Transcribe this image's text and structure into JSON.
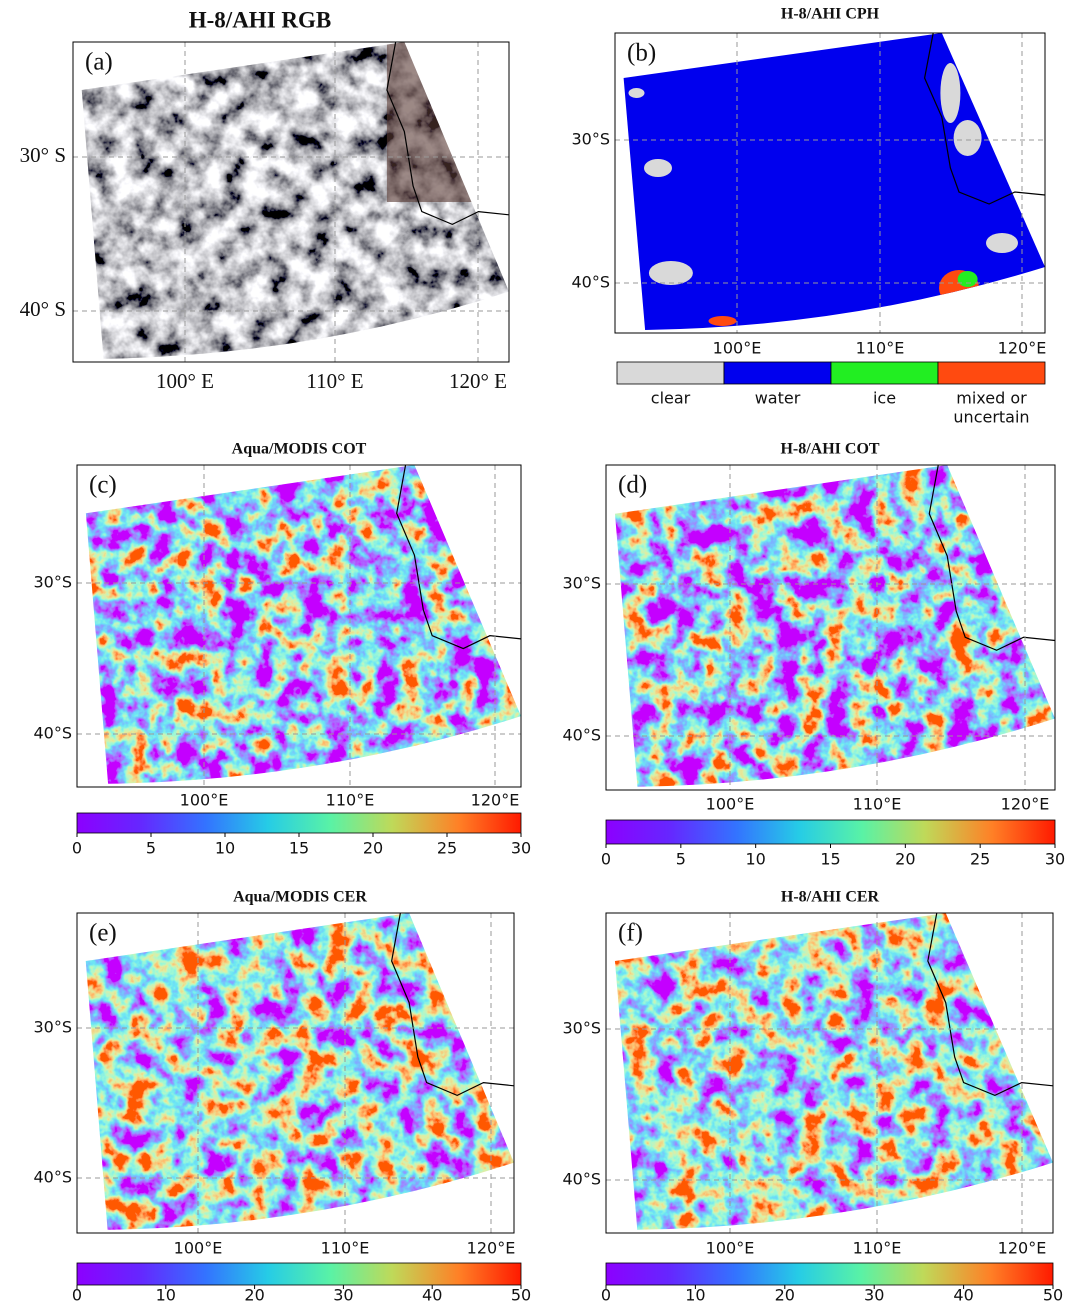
{
  "panels": [
    {
      "label": "(a)",
      "title": "H-8/AHI   RGB",
      "lat_labels": [
        "30° S",
        "40° S"
      ],
      "lon_labels": [
        "100° E",
        "110° E",
        "120° E"
      ]
    },
    {
      "label": "(b)",
      "title": "H-8/AHI  CPH",
      "lat_labels": [
        "30°S",
        "40°S"
      ],
      "lon_labels": [
        "100°E",
        "110°E",
        "120°E"
      ],
      "legend": [
        {
          "label": [
            "clear"
          ],
          "color": "#d9d9d9"
        },
        {
          "label": [
            "water"
          ],
          "color": "#0000ee"
        },
        {
          "label": [
            "ice"
          ],
          "color": "#22ee22"
        },
        {
          "label": [
            "mixed  or",
            "uncertain"
          ],
          "color": "#ff4a10"
        }
      ]
    },
    {
      "label": "(c)",
      "title": "Aqua/MODIS  COT",
      "lat_labels": [
        "30°S",
        "40°S"
      ],
      "lon_labels": [
        "100°E",
        "110°E",
        "120°E"
      ],
      "colorbar": {
        "lim": [
          0,
          30
        ],
        "ticks": [
          0,
          5,
          10,
          15,
          20,
          25,
          30
        ]
      }
    },
    {
      "label": "(d)",
      "title": "H-8/AHI  COT",
      "lat_labels": [
        "30°S",
        "40°S"
      ],
      "lon_labels": [
        "100°E",
        "110°E",
        "120°E"
      ],
      "colorbar": {
        "lim": [
          0,
          30
        ],
        "ticks": [
          0,
          5,
          10,
          15,
          20,
          25,
          30
        ]
      }
    },
    {
      "label": "(e)",
      "title": "Aqua/MODIS  CER",
      "lat_labels": [
        "30°S",
        "40°S"
      ],
      "lon_labels": [
        "100°E",
        "110°E",
        "120°E"
      ],
      "colorbar": {
        "lim": [
          0,
          50
        ],
        "ticks": [
          0,
          10,
          20,
          30,
          40,
          50
        ]
      }
    },
    {
      "label": "(f)",
      "title": "H-8/AHI  CER",
      "lat_labels": [
        "30°S",
        "40°S"
      ],
      "lon_labels": [
        "100°E",
        "110°E",
        "120°E"
      ],
      "colorbar": {
        "lim": [
          0,
          50
        ],
        "ticks": [
          0,
          10,
          20,
          30,
          40,
          50
        ]
      }
    }
  ]
}
